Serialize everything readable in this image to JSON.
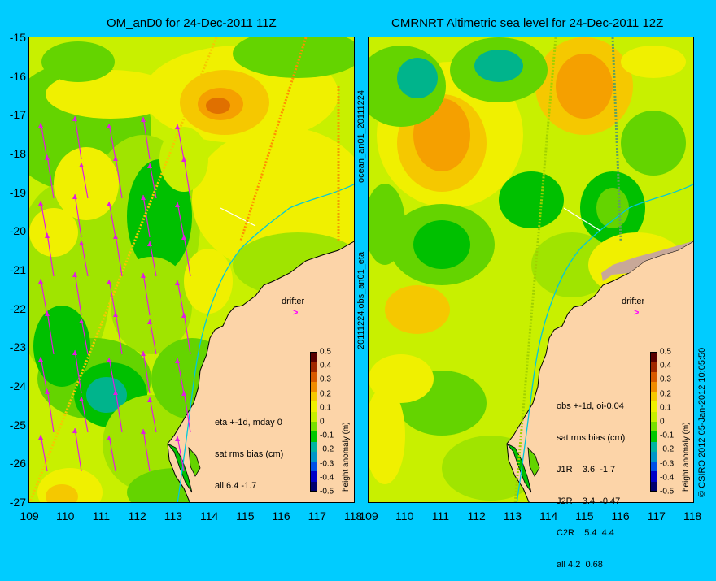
{
  "left_panel": {
    "title": "OM_anD0 for 24-Dec-2011 11Z",
    "annotation_lines": [
      "eta +-1d, mday 0",
      "sat rms bias (cm)",
      "all 6.4 -1.7"
    ],
    "drifter_label": "drifter"
  },
  "right_panel": {
    "title": "CMRNRT Altimetric sea level  for 24-Dec-2011 12Z",
    "annotation_lines": [
      "obs +-1d, oi-0.04",
      "sat rms bias (cm)",
      "J1R    3.6  -1.7",
      "J2R    3.4  -0.47",
      "C2R    5.4  4.4",
      "all 4.2  0.68"
    ],
    "drifter_label": "drifter"
  },
  "middle_vertical_labels": {
    "top": "ocean_an01_20111224",
    "bottom": "20111224.obs_an01_eta"
  },
  "right_edge_label": "© CSIRO 2012  05-Jan-2012 10:05:50",
  "axes": {
    "y_ticks": [
      "-15",
      "-16",
      "-17",
      "-18",
      "-19",
      "-20",
      "-21",
      "-22",
      "-23",
      "-24",
      "-25",
      "-26",
      "-27"
    ],
    "x_ticks_left": [
      "109",
      "110",
      "111",
      "112",
      "113",
      "114",
      "115",
      "116",
      "117",
      "118"
    ],
    "x_ticks_right": [
      "109",
      "110",
      "111",
      "112",
      "113",
      "114",
      "115",
      "116",
      "117",
      "118"
    ]
  },
  "colorbar": {
    "title": "height anomaly (m)",
    "ticks": [
      "0.5",
      "0.4",
      "0.3",
      "0.2",
      "0.1",
      "0",
      "-0.1",
      "-0.2",
      "-0.3",
      "-0.4",
      "-0.5"
    ],
    "colors": [
      "#5a0000",
      "#a02800",
      "#d85a00",
      "#f08c00",
      "#f5c800",
      "#f0f000",
      "#c8f000",
      "#78e000",
      "#00c800",
      "#00b4a0",
      "#0096c8",
      "#0050e6",
      "#0000c8",
      "#00006e"
    ]
  },
  "colors": {
    "background": "#00ccff",
    "land": "#fcd4a8",
    "arrow": "#e01ee0",
    "coast_line": "#00c8dc"
  }
}
